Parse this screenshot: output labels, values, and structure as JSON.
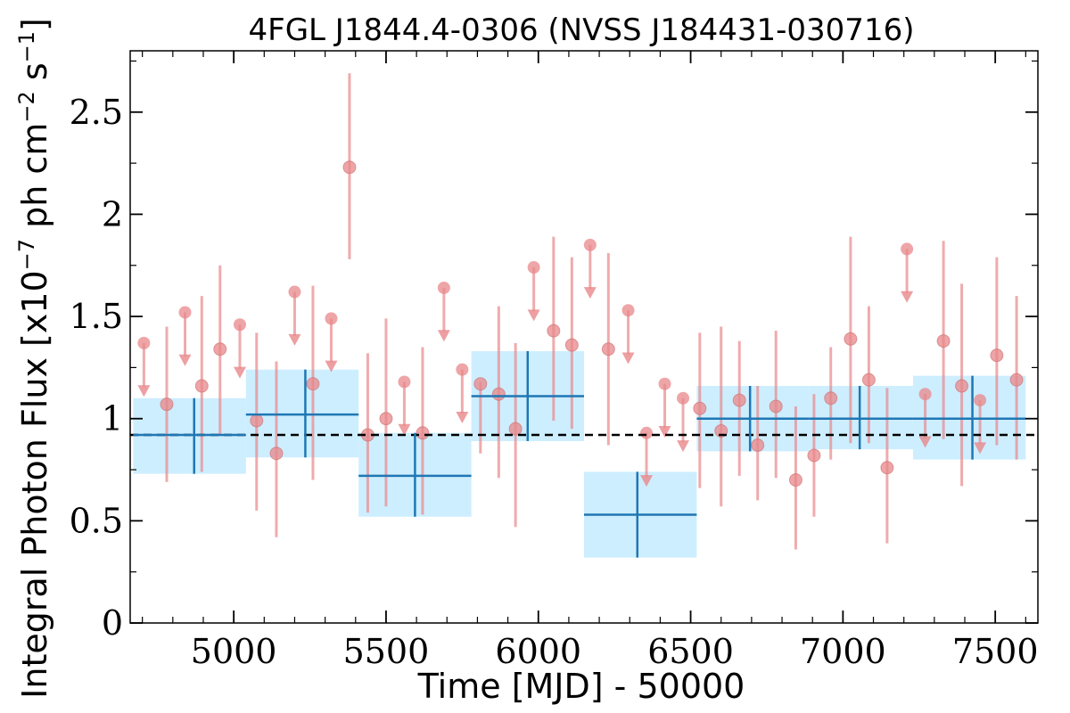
{
  "chart_data": {
    "type": "scatter",
    "title": "4FGL J1844.4-0306 (NVSS J184431-030716)",
    "xlabel": "Time [MJD] - 50000",
    "ylabel": "Integral Photon Flux [x10",
    "ylabel_exp1": "−7",
    "ylabel_mid": " ph cm",
    "ylabel_exp2": "−2",
    "ylabel_s": " s",
    "ylabel_exp3": "−1",
    "ylabel_end": "]",
    "xlim": [
      4660,
      7640
    ],
    "ylim": [
      0,
      2.8
    ],
    "x_ticks": [
      5000,
      5500,
      6000,
      6500,
      7000,
      7500
    ],
    "x_tick_labels": [
      "5000",
      "5500",
      "6000",
      "6500",
      "7000",
      "7500"
    ],
    "y_ticks": [
      0,
      0.5,
      1,
      1.5,
      2,
      2.5
    ],
    "y_tick_labels": [
      "0",
      "0.5",
      "1",
      "1.5",
      "2",
      "2.5"
    ],
    "mean_flux": 0.92,
    "colors": {
      "points": "#e8878a",
      "bins_fill": "#cdeeff",
      "bins_line": "#1f77b4",
      "mean_line": "#000000"
    },
    "detections": [
      {
        "x": 4780,
        "y": 1.07,
        "lo": 0.69,
        "hi": 1.45
      },
      {
        "x": 4895,
        "y": 1.16,
        "lo": 0.74,
        "hi": 1.6
      },
      {
        "x": 4955,
        "y": 1.34,
        "lo": 0.92,
        "hi": 1.75
      },
      {
        "x": 5075,
        "y": 0.99,
        "lo": 0.55,
        "hi": 1.42
      },
      {
        "x": 5140,
        "y": 0.83,
        "lo": 0.42,
        "hi": 1.28
      },
      {
        "x": 5260,
        "y": 1.17,
        "lo": 0.7,
        "hi": 1.65
      },
      {
        "x": 5380,
        "y": 2.23,
        "lo": 1.78,
        "hi": 2.69
      },
      {
        "x": 5440,
        "y": 0.92,
        "lo": 0.54,
        "hi": 1.32
      },
      {
        "x": 5500,
        "y": 1.0,
        "lo": 0.57,
        "hi": 1.49
      },
      {
        "x": 5620,
        "y": 0.93,
        "lo": 0.53,
        "hi": 1.35
      },
      {
        "x": 5810,
        "y": 1.17,
        "lo": 0.83,
        "hi": 1.18
      },
      {
        "x": 5870,
        "y": 1.12,
        "lo": 0.71,
        "hi": 1.55
      },
      {
        "x": 5925,
        "y": 0.95,
        "lo": 0.47,
        "hi": 1.37
      },
      {
        "x": 6050,
        "y": 1.43,
        "lo": 0.99,
        "hi": 1.89
      },
      {
        "x": 6110,
        "y": 1.36,
        "lo": 0.95,
        "hi": 1.79
      },
      {
        "x": 6230,
        "y": 1.34,
        "lo": 0.87,
        "hi": 1.81
      },
      {
        "x": 6530,
        "y": 1.05,
        "lo": 0.66,
        "hi": 1.42
      },
      {
        "x": 6600,
        "y": 0.94,
        "lo": 0.57,
        "hi": 1.45
      },
      {
        "x": 6660,
        "y": 1.09,
        "lo": 0.72,
        "hi": 1.38
      },
      {
        "x": 6720,
        "y": 0.87,
        "lo": 0.6,
        "hi": 1.16
      },
      {
        "x": 6780,
        "y": 1.06,
        "lo": 0.71,
        "hi": 1.43
      },
      {
        "x": 6845,
        "y": 0.7,
        "lo": 0.36,
        "hi": 1.06
      },
      {
        "x": 6905,
        "y": 0.82,
        "lo": 0.52,
        "hi": 1.12
      },
      {
        "x": 6960,
        "y": 1.1,
        "lo": 0.8,
        "hi": 1.35
      },
      {
        "x": 7025,
        "y": 1.39,
        "lo": 0.88,
        "hi": 1.89
      },
      {
        "x": 7085,
        "y": 1.19,
        "lo": 0.88,
        "hi": 1.55
      },
      {
        "x": 7145,
        "y": 0.76,
        "lo": 0.39,
        "hi": 1.15
      },
      {
        "x": 7330,
        "y": 1.38,
        "lo": 0.9,
        "hi": 1.87
      },
      {
        "x": 7390,
        "y": 1.16,
        "lo": 0.67,
        "hi": 1.66
      },
      {
        "x": 7505,
        "y": 1.31,
        "lo": 0.87,
        "hi": 1.79
      },
      {
        "x": 7570,
        "y": 1.19,
        "lo": 0.8,
        "hi": 1.6
      }
    ],
    "upper_limits": [
      {
        "x": 4705,
        "y": 1.37,
        "tip": 1.12
      },
      {
        "x": 4840,
        "y": 1.52,
        "tip": 1.27
      },
      {
        "x": 5020,
        "y": 1.46,
        "tip": 1.21
      },
      {
        "x": 5200,
        "y": 1.62,
        "tip": 1.37
      },
      {
        "x": 5320,
        "y": 1.49,
        "tip": 1.24
      },
      {
        "x": 5560,
        "y": 1.18,
        "tip": 0.93
      },
      {
        "x": 5690,
        "y": 1.64,
        "tip": 1.39
      },
      {
        "x": 5750,
        "y": 1.24,
        "tip": 0.99
      },
      {
        "x": 5985,
        "y": 1.74,
        "tip": 1.49
      },
      {
        "x": 6170,
        "y": 1.85,
        "tip": 1.6
      },
      {
        "x": 6295,
        "y": 1.53,
        "tip": 1.28
      },
      {
        "x": 6355,
        "y": 0.93,
        "tip": 0.68
      },
      {
        "x": 6415,
        "y": 1.17,
        "tip": 0.92
      },
      {
        "x": 6475,
        "y": 1.1,
        "tip": 0.85
      },
      {
        "x": 7210,
        "y": 1.83,
        "tip": 1.58
      },
      {
        "x": 7270,
        "y": 1.12,
        "tip": 0.87
      },
      {
        "x": 7450,
        "y": 1.09,
        "tip": 0.84
      }
    ],
    "bins": [
      {
        "x0": 4670,
        "x1": 5040,
        "xc": 4870,
        "y": 0.92,
        "lo": 0.73,
        "hi": 1.1
      },
      {
        "x0": 5040,
        "x1": 5410,
        "xc": 5235,
        "y": 1.02,
        "lo": 0.81,
        "hi": 1.24
      },
      {
        "x0": 5410,
        "x1": 5780,
        "xc": 5595,
        "y": 0.72,
        "lo": 0.52,
        "hi": 0.93
      },
      {
        "x0": 5780,
        "x1": 6150,
        "xc": 5965,
        "y": 1.11,
        "lo": 0.89,
        "hi": 1.33
      },
      {
        "x0": 6150,
        "x1": 6520,
        "xc": 6325,
        "y": 0.53,
        "lo": 0.32,
        "hi": 0.74
      },
      {
        "x0": 6520,
        "x1": 6890,
        "xc": 6695,
        "y": 1.0,
        "lo": 0.84,
        "hi": 1.16
      },
      {
        "x0": 6890,
        "x1": 7230,
        "xc": 7055,
        "y": 1.0,
        "lo": 0.85,
        "hi": 1.16
      },
      {
        "x0": 7230,
        "x1": 7600,
        "xc": 7425,
        "y": 1.0,
        "lo": 0.8,
        "hi": 1.21
      }
    ]
  }
}
